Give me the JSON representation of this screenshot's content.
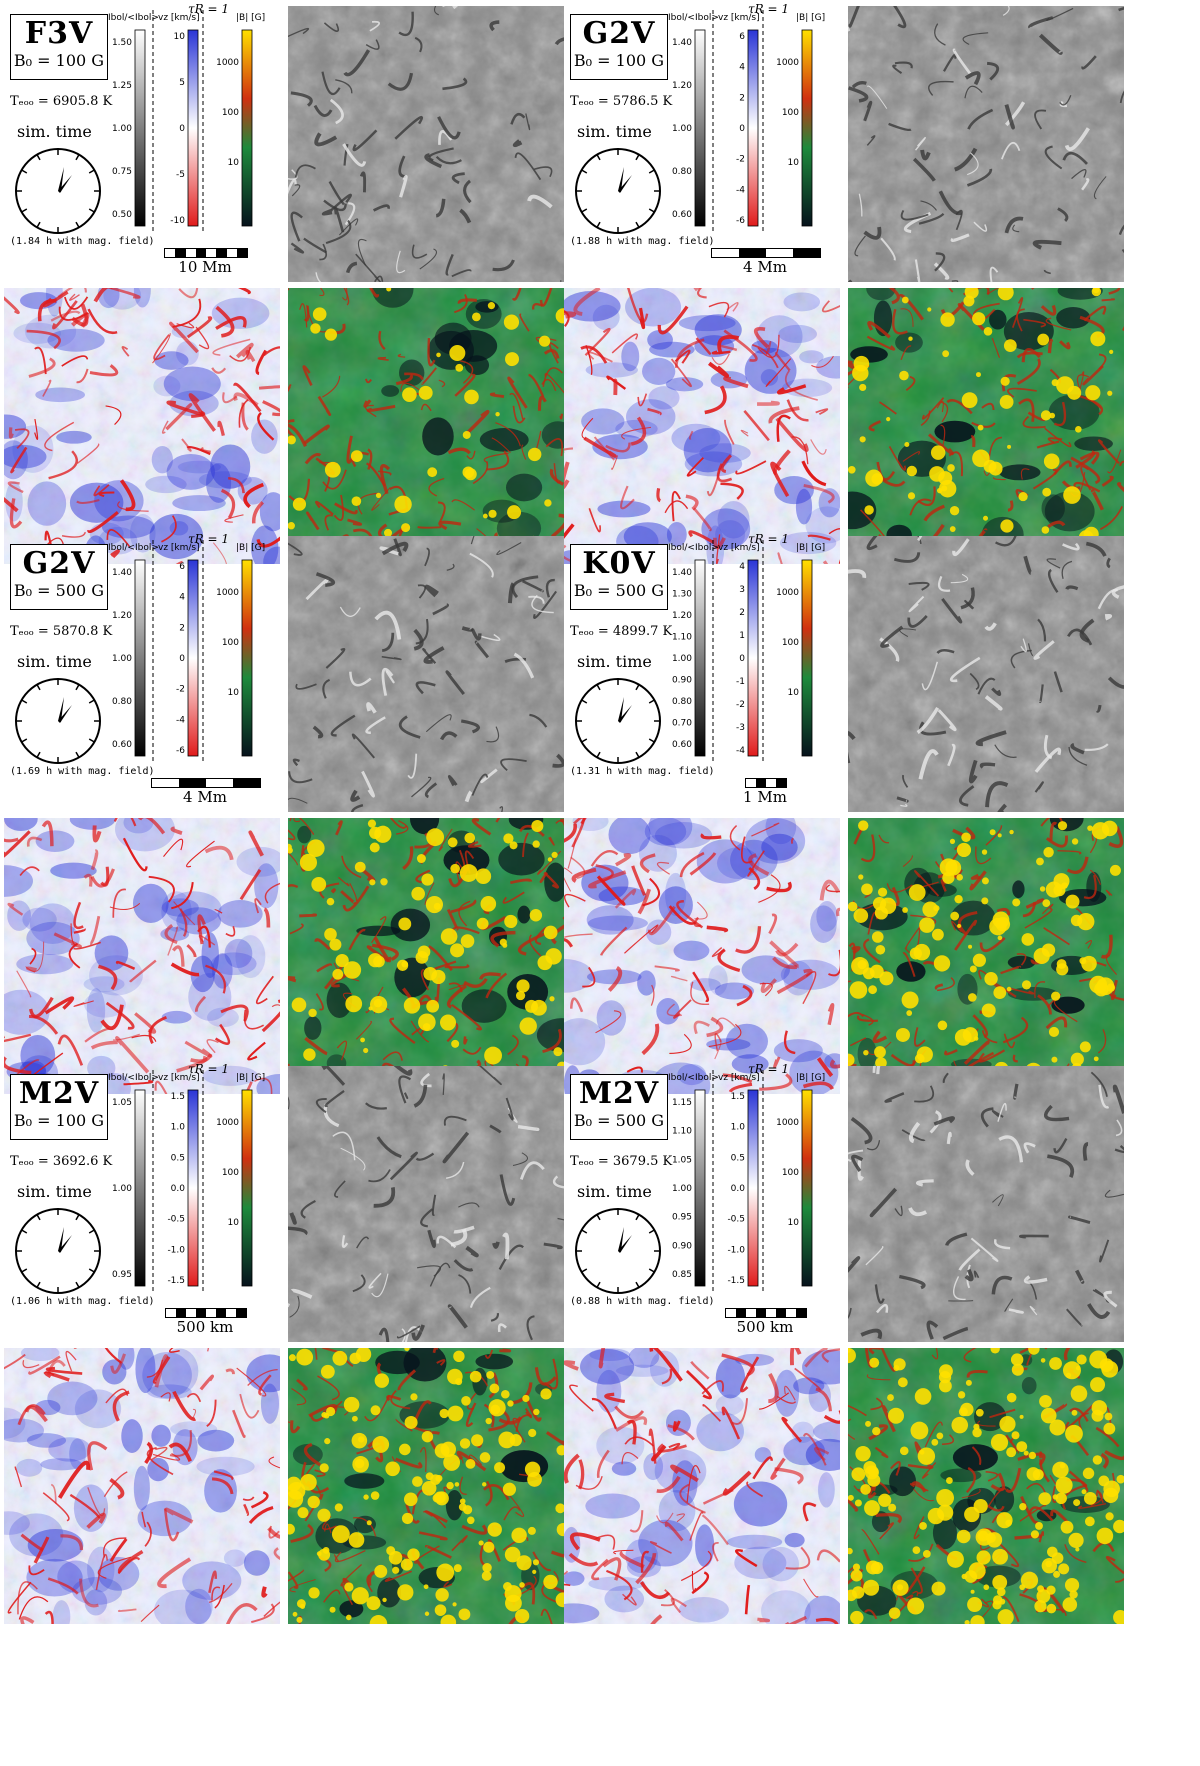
{
  "panels": [
    {
      "star": "F3V",
      "b0": "B₀ = 100 G",
      "teff": "Tₑₒₒ = 6905.8 K",
      "sim_time_label": "sim. time",
      "sim_time_note": "(1.84 h with mag. field)",
      "scale_bar_label": "10 Mm",
      "tau_label": "τR = 1",
      "intensity_axis_label": "Ibol/<Ibol>",
      "intensity_ticks": [
        "1.50",
        "1.25",
        "1.00",
        "0.75",
        "0.50"
      ],
      "velocity_axis_label": "vz [km/s]",
      "velocity_ticks": [
        "10",
        "5",
        "0",
        "-5",
        "-10"
      ],
      "field_axis_label": "|B| [G]",
      "field_ticks": [
        "1000",
        "100",
        "10"
      ]
    },
    {
      "star": "G2V",
      "b0": "B₀ = 100 G",
      "teff": "Tₑₒₒ = 5786.5 K",
      "sim_time_label": "sim. time",
      "sim_time_note": "(1.88 h with mag. field)",
      "scale_bar_label": "4 Mm",
      "tau_label": "τR = 1",
      "intensity_axis_label": "Ibol/<Ibol>",
      "intensity_ticks": [
        "1.40",
        "1.20",
        "1.00",
        "0.80",
        "0.60"
      ],
      "velocity_axis_label": "vz [km/s]",
      "velocity_ticks": [
        "6",
        "4",
        "2",
        "0",
        "-2",
        "-4",
        "-6"
      ],
      "field_axis_label": "|B| [G]",
      "field_ticks": [
        "1000",
        "100",
        "10"
      ]
    },
    {
      "star": "G2V",
      "b0": "B₀ = 500 G",
      "teff": "Tₑₒₒ = 5870.8 K",
      "sim_time_label": "sim. time",
      "sim_time_note": "(1.69 h with mag. field)",
      "scale_bar_label": "4 Mm",
      "tau_label": "τR = 1",
      "intensity_axis_label": "Ibol/<Ibol>",
      "intensity_ticks": [
        "1.40",
        "1.20",
        "1.00",
        "0.80",
        "0.60"
      ],
      "velocity_axis_label": "vz [km/s]",
      "velocity_ticks": [
        "6",
        "4",
        "2",
        "0",
        "-2",
        "-4",
        "-6"
      ],
      "field_axis_label": "|B| [G]",
      "field_ticks": [
        "1000",
        "100",
        "10"
      ]
    },
    {
      "star": "K0V",
      "b0": "B₀ = 500 G",
      "teff": "Tₑₒₒ = 4899.7 K",
      "sim_time_label": "sim. time",
      "sim_time_note": "(1.31 h with mag. field)",
      "scale_bar_label": "1 Mm",
      "tau_label": "τR = 1",
      "intensity_axis_label": "Ibol/<Ibol>",
      "intensity_ticks": [
        "1.40",
        "1.30",
        "1.20",
        "1.10",
        "1.00",
        "0.90",
        "0.80",
        "0.70",
        "0.60"
      ],
      "velocity_axis_label": "vz [km/s]",
      "velocity_ticks": [
        "4",
        "3",
        "2",
        "1",
        "0",
        "-1",
        "-2",
        "-3",
        "-4"
      ],
      "field_axis_label": "|B| [G]",
      "field_ticks": [
        "1000",
        "100",
        "10"
      ]
    },
    {
      "star": "M2V",
      "b0": "B₀ = 100 G",
      "teff": "Tₑₒₒ = 3692.6 K",
      "sim_time_label": "sim. time",
      "sim_time_note": "(1.06 h with mag. field)",
      "scale_bar_label": "500 km",
      "tau_label": "τR = 1",
      "intensity_axis_label": "Ibol/<Ibol>",
      "intensity_ticks": [
        "1.05",
        "1.00",
        "0.95"
      ],
      "velocity_axis_label": "vz [km/s]",
      "velocity_ticks": [
        "1.5",
        "1.0",
        "0.5",
        "0.0",
        "-0.5",
        "-1.0",
        "-1.5"
      ],
      "field_axis_label": "|B| [G]",
      "field_ticks": [
        "1000",
        "100",
        "10"
      ]
    },
    {
      "star": "M2V",
      "b0": "B₀ = 500 G",
      "teff": "Tₑₒₒ = 3679.5 K",
      "sim_time_label": "sim. time",
      "sim_time_note": "(0.88 h with mag. field)",
      "scale_bar_label": "500 km",
      "tau_label": "τR = 1",
      "intensity_axis_label": "Ibol/<Ibol>",
      "intensity_ticks": [
        "1.15",
        "1.10",
        "1.05",
        "1.00",
        "0.95",
        "0.90",
        "0.85"
      ],
      "velocity_axis_label": "vz [km/s]",
      "velocity_ticks": [
        "1.5",
        "1.0",
        "0.5",
        "0.0",
        "-0.5",
        "-1.0",
        "-1.5"
      ],
      "field_axis_label": "|B| [G]",
      "field_ticks": [
        "1000",
        "100",
        "10"
      ]
    }
  ],
  "colors": {
    "velocity_positive": "#2a35d6",
    "velocity_negative": "#e01b1b",
    "field_low": "#06121c",
    "field_mid": "#1e8a3c",
    "field_high": "#ffe000"
  }
}
